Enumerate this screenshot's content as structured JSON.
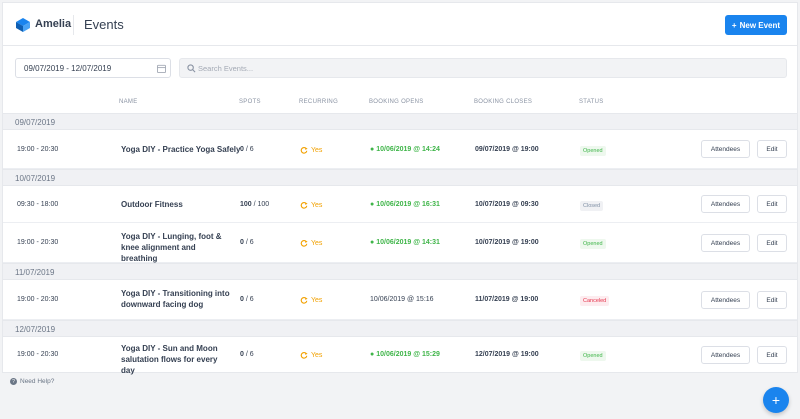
{
  "header": {
    "brand": "Amelia",
    "title": "Events",
    "new_event_label": "New Event",
    "accent": "#1a84ee"
  },
  "filters": {
    "date_range": "09/07/2019 - 12/07/2019",
    "search_placeholder": "Search Events..."
  },
  "columns": {
    "name": "NAME",
    "spots": "SPOTS",
    "recurring": "RECURRING",
    "booking_opens": "BOOKING OPENS",
    "booking_closes": "BOOKING CLOSES",
    "status": "STATUS"
  },
  "groups": [
    {
      "date": "09/07/2019",
      "events": [
        {
          "time": "19:00 - 20:30",
          "name": "Yoga DIY - Practice Yoga Safely",
          "spots_booked": "0",
          "spots_total": " / 6",
          "recurring": "Yes",
          "opens": "10/06/2019 @ 14:24",
          "opens_dot": "●",
          "closes": "09/07/2019 @ 19:00",
          "status": "Opened",
          "attendees_label": "Attendees",
          "edit_label": "Edit"
        }
      ]
    },
    {
      "date": "10/07/2019",
      "events": [
        {
          "time": "09:30 - 18:00",
          "name": "Outdoor Fitness",
          "spots_booked": "100",
          "spots_total": " / 100",
          "recurring": "Yes",
          "opens": "10/06/2019 @ 16:31",
          "opens_dot": "●",
          "closes": "10/07/2019 @ 09:30",
          "status": "Closed",
          "attendees_label": "Attendees",
          "edit_label": "Edit"
        },
        {
          "time": "19:00 - 20:30",
          "name": "Yoga DIY - Lunging, foot & knee alignment and breathing",
          "spots_booked": "0",
          "spots_total": " / 6",
          "recurring": "Yes",
          "opens": "10/06/2019 @ 14:31",
          "opens_dot": "●",
          "closes": "10/07/2019 @ 19:00",
          "status": "Opened",
          "attendees_label": "Attendees",
          "edit_label": "Edit"
        }
      ]
    },
    {
      "date": "11/07/2019",
      "events": [
        {
          "time": "19:00 - 20:30",
          "name": "Yoga DIY - Transitioning into downward facing dog",
          "spots_booked": "0",
          "spots_total": " / 6",
          "recurring": "Yes",
          "opens": "10/06/2019 @ 15:16",
          "closes": "11/07/2019 @ 19:00",
          "status": "Canceled",
          "attendees_label": "Attendees",
          "edit_label": "Edit"
        }
      ]
    },
    {
      "date": "12/07/2019",
      "events": [
        {
          "time": "19:00 - 20:30",
          "name": "Yoga DIY - Sun and Moon salutation flows for every day",
          "spots_booked": "0",
          "spots_total": " / 6",
          "recurring": "Yes",
          "opens": "10/06/2019 @ 15:29",
          "opens_dot": "●",
          "closes": "12/07/2019 @ 19:00",
          "status": "Opened",
          "attendees_label": "Attendees",
          "edit_label": "Edit"
        }
      ]
    }
  ],
  "footer": {
    "help_label": "Need Help?",
    "fab_label": "+"
  }
}
